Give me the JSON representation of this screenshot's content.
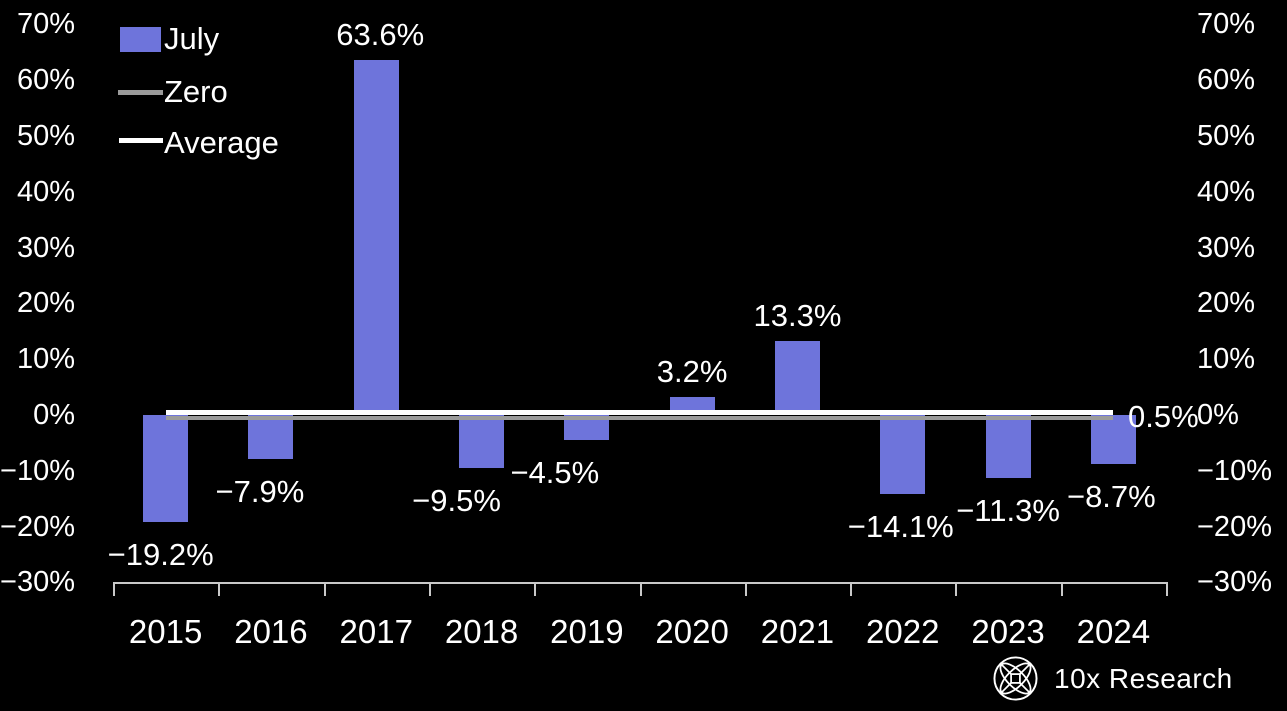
{
  "chart_data": {
    "type": "bar",
    "title": "",
    "categories": [
      "2015",
      "2016",
      "2017",
      "2018",
      "2019",
      "2020",
      "2021",
      "2022",
      "2023",
      "2024"
    ],
    "series": [
      {
        "name": "July",
        "values": [
          -19.2,
          -7.9,
          63.6,
          -9.5,
          -4.5,
          3.2,
          13.3,
          -14.1,
          -11.3,
          -8.7
        ]
      }
    ],
    "value_labels": [
      "−19.2%",
      "−7.9%",
      "63.6%",
      "−9.5%",
      "−4.5%",
      "3.2%",
      "13.3%",
      "−14.1%",
      "−11.3%",
      "−8.7%"
    ],
    "bar_color": "#6e74db",
    "background": "#000000",
    "grid": false,
    "legend_position": "top-left",
    "legend": [
      {
        "label": "July",
        "swatch": "bar",
        "color": "#6e74db"
      },
      {
        "label": "Zero",
        "swatch": "line",
        "color": "#9b9b9b"
      },
      {
        "label": "Average",
        "swatch": "line",
        "color": "#ffffff"
      }
    ],
    "reference_lines": [
      {
        "name": "Zero",
        "value": 0,
        "color": "#9b9b9b",
        "label": ""
      },
      {
        "name": "Average",
        "value": 0.5,
        "color": "#ffffff",
        "label": "0.5%"
      }
    ],
    "y_axis": {
      "sides": "both",
      "ylim": [
        -30,
        70
      ],
      "ticks": [
        70,
        60,
        50,
        40,
        30,
        20,
        10,
        0,
        -10,
        -20,
        -30
      ],
      "tick_labels": [
        "70%",
        "60%",
        "50%",
        "40%",
        "30%",
        "20%",
        "10%",
        "0%",
        "−10%",
        "−20%",
        "−30%"
      ]
    },
    "x_axis": {
      "tick_labels": [
        "2015",
        "2016",
        "2017",
        "2018",
        "2019",
        "2020",
        "2021",
        "2022",
        "2023",
        "2024"
      ]
    }
  },
  "branding": {
    "logo_text": "10x Research"
  }
}
